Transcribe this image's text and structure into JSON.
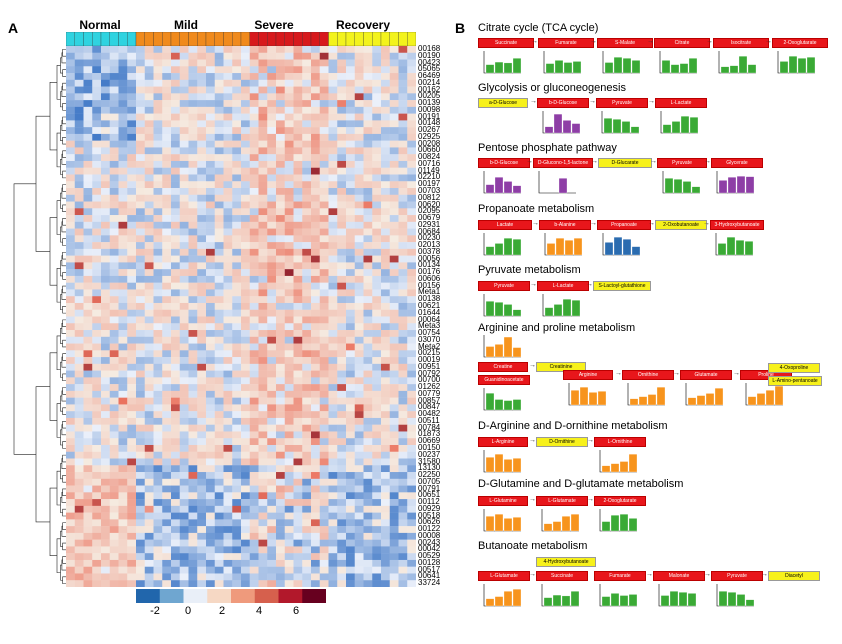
{
  "panel_a_letter": "A",
  "panel_b_letter": "B",
  "groups": [
    {
      "label": "Normal",
      "color": "#2fd3e0"
    },
    {
      "label": "Mild",
      "color": "#f08a1c"
    },
    {
      "label": "Severe",
      "color": "#d7191c"
    },
    {
      "label": "Recovery",
      "color": "#f3f31c"
    }
  ],
  "row_labels": [
    "00168",
    "00190",
    "00423",
    "05065",
    "06469",
    "00214",
    "00162",
    "00205",
    "00139",
    "00098",
    "00191",
    "00148",
    "00267",
    "02925",
    "00208",
    "00660",
    "00824",
    "00716",
    "01149",
    "02210",
    "00197",
    "00703",
    "00812",
    "00620",
    "02095",
    "00679",
    "02931",
    "00684",
    "00230",
    "02013",
    "00378",
    "00056",
    "00134",
    "00176",
    "00606",
    "00156",
    "Meta1",
    "00138",
    "00621",
    "01644",
    "00064",
    "Meta3",
    "00754",
    "03070",
    "Meta2",
    "00215",
    "00019",
    "00951",
    "00792",
    "00700",
    "01262",
    "00779",
    "00857",
    "00847",
    "00482",
    "00511",
    "00784",
    "01873",
    "00669",
    "00150",
    "00237",
    "31580",
    "13130",
    "02250",
    "00705",
    "00791",
    "00651",
    "00112",
    "00929",
    "00518",
    "00626",
    "00122",
    "00008",
    "00243",
    "00042",
    "00529",
    "00128",
    "00517",
    "00641",
    "33724"
  ],
  "colorbar": {
    "ticks": [
      "-2",
      "0",
      "2",
      "4",
      "6"
    ]
  },
  "pathways": [
    {
      "title": "Citrate cycle (TCA cycle)",
      "nodes": [
        {
          "label": "Succinate",
          "color": "red",
          "bars": [
            40,
            52,
            48,
            70
          ],
          "fill": "#3aaa35"
        },
        {
          "label": "Fumarate",
          "color": "red",
          "bars": [
            45,
            60,
            50,
            55
          ],
          "fill": "#3aaa35"
        },
        {
          "label": "S-Malate",
          "color": "red",
          "bars": [
            50,
            75,
            70,
            60
          ],
          "fill": "#3aaa35"
        },
        {
          "label": "Citrate",
          "color": "red",
          "bars": [
            60,
            40,
            45,
            70
          ],
          "fill": "#3aaa35"
        },
        {
          "label": "Isocitrate",
          "color": "red",
          "bars": [
            30,
            35,
            80,
            40
          ],
          "fill": "#3aaa35"
        },
        {
          "label": "2-Oxoglutarate",
          "color": "red",
          "bars": [
            55,
            80,
            70,
            75
          ],
          "fill": "#3aaa35"
        }
      ]
    },
    {
      "title": "Glycolysis or gluconeogenesis",
      "nodes": [
        {
          "label": "a-D-Glucose",
          "color": "yellow",
          "bars": [],
          "fill": ""
        },
        {
          "label": "b-D-Glucose",
          "color": "red",
          "bars": [
            30,
            90,
            60,
            45
          ],
          "fill": "#8e3ea6"
        },
        {
          "label": "Pyruvate",
          "color": "red",
          "bars": [
            70,
            65,
            55,
            30
          ],
          "fill": "#3aaa35"
        },
        {
          "label": "L-Lactate",
          "color": "red",
          "bars": [
            40,
            55,
            80,
            75
          ],
          "fill": "#3aaa35"
        }
      ]
    },
    {
      "title": "Pentose phosphate pathway",
      "nodes": [
        {
          "label": "b-D-Glucose",
          "color": "red",
          "bars": [
            40,
            75,
            55,
            35
          ],
          "fill": "#8e3ea6"
        },
        {
          "label": "D-Glucono-1,5-lactone",
          "color": "red",
          "bars": [
            0,
            0,
            70,
            0
          ],
          "fill": "#8e3ea6"
        },
        {
          "label": "D-Glucarate",
          "color": "yellow",
          "bars": [],
          "fill": ""
        },
        {
          "label": "Pyruvate",
          "color": "red",
          "bars": [
            70,
            65,
            55,
            30
          ],
          "fill": "#3aaa35"
        },
        {
          "label": "Glycerate",
          "color": "red",
          "bars": [
            60,
            75,
            80,
            78
          ],
          "fill": "#8e3ea6"
        }
      ]
    },
    {
      "title": "Propanoate metabolism",
      "nodes": [
        {
          "label": "Lactate",
          "color": "red",
          "bars": [
            40,
            55,
            80,
            75
          ],
          "fill": "#3aaa35"
        },
        {
          "label": "b-Alanine",
          "color": "red",
          "bars": [
            55,
            80,
            70,
            80
          ],
          "fill": "#f7941d"
        },
        {
          "label": "Propanoate",
          "color": "red",
          "bars": [
            60,
            85,
            75,
            40
          ],
          "fill": "#2b6cb0"
        },
        {
          "label": "2-Oxobutanoate",
          "color": "yellow",
          "bars": [],
          "fill": ""
        },
        {
          "label": "3-Hydroxybutanoate",
          "color": "red",
          "bars": [
            55,
            85,
            70,
            65
          ],
          "fill": "#3aaa35"
        }
      ]
    },
    {
      "title": "Pyruvate metabolism",
      "nodes": [
        {
          "label": "Pyruvate",
          "color": "red",
          "bars": [
            70,
            65,
            55,
            30
          ],
          "fill": "#3aaa35"
        },
        {
          "label": "L-Lactate",
          "color": "red",
          "bars": [
            40,
            55,
            80,
            75
          ],
          "fill": "#3aaa35"
        },
        {
          "label": "S-Lactoyl-glutathione",
          "color": "yellow",
          "bars": [],
          "fill": ""
        }
      ]
    },
    {
      "title": "Arginine and proline metabolism",
      "nodes": [
        {
          "label": "Creatine",
          "color": "red",
          "bars": [
            50,
            60,
            95,
            45
          ],
          "fill": "#f7941d"
        },
        {
          "label": "Creatinine",
          "color": "yellow",
          "bars": [],
          "fill": ""
        },
        {
          "label": "Guanidinoacetate",
          "color": "red",
          "bars": [
            80,
            50,
            45,
            50
          ],
          "fill": "#3aaa35"
        },
        {
          "label": "Arginine",
          "color": "red",
          "bars": [
            70,
            85,
            60,
            65
          ],
          "fill": "#f7941d"
        },
        {
          "label": "Ornithine",
          "color": "red",
          "bars": [
            30,
            40,
            50,
            85
          ],
          "fill": "#f7941d"
        },
        {
          "label": "Glutamate",
          "color": "red",
          "bars": [
            35,
            45,
            55,
            80
          ],
          "fill": "#f7941d"
        },
        {
          "label": "Proline",
          "color": "red",
          "bars": [
            40,
            55,
            70,
            90
          ],
          "fill": "#f7941d"
        },
        {
          "label": "4-Oxoproline",
          "color": "yellow",
          "bars": [],
          "fill": ""
        },
        {
          "label": "L-Amino-pentanoate",
          "color": "yellow",
          "bars": [],
          "fill": ""
        }
      ]
    },
    {
      "title": "D-Arginine and D-ornithine metabolism",
      "nodes": [
        {
          "label": "L-Arginine",
          "color": "red",
          "bars": [
            70,
            85,
            60,
            65
          ],
          "fill": "#f7941d"
        },
        {
          "label": "D-Ornithine",
          "color": "yellow",
          "bars": [],
          "fill": ""
        },
        {
          "label": "L-Ornithine",
          "color": "red",
          "bars": [
            30,
            40,
            50,
            85
          ],
          "fill": "#f7941d"
        }
      ]
    },
    {
      "title": "D-Glutamine and D-glutamate metabolism",
      "nodes": [
        {
          "label": "L-Glutamine",
          "color": "red",
          "bars": [
            70,
            80,
            60,
            65
          ],
          "fill": "#f7941d"
        },
        {
          "label": "L-Glutamate",
          "color": "red",
          "bars": [
            35,
            45,
            70,
            80
          ],
          "fill": "#f7941d"
        },
        {
          "label": "2-Oxoglutarate",
          "color": "red",
          "bars": [
            45,
            75,
            80,
            60
          ],
          "fill": "#3aaa35"
        }
      ]
    },
    {
      "title": "Butanoate metabolism",
      "nodes": [
        {
          "label": "L-Glutamate",
          "color": "red",
          "bars": [
            35,
            45,
            70,
            80
          ],
          "fill": "#f7941d"
        },
        {
          "label": "Succinate",
          "color": "red",
          "bars": [
            40,
            52,
            48,
            70
          ],
          "fill": "#3aaa35"
        },
        {
          "label": "4-Hydroxybutanoate",
          "color": "yellow",
          "bars": [],
          "fill": ""
        },
        {
          "label": "Fumarate",
          "color": "red",
          "bars": [
            45,
            60,
            50,
            55
          ],
          "fill": "#3aaa35"
        },
        {
          "label": "Malonate",
          "color": "red",
          "bars": [
            50,
            70,
            65,
            60
          ],
          "fill": "#3aaa35"
        },
        {
          "label": "Pyruvate",
          "color": "red",
          "bars": [
            70,
            65,
            55,
            30
          ],
          "fill": "#3aaa35"
        },
        {
          "label": "Diacetyl",
          "color": "yellow",
          "bars": [],
          "fill": ""
        }
      ]
    }
  ]
}
